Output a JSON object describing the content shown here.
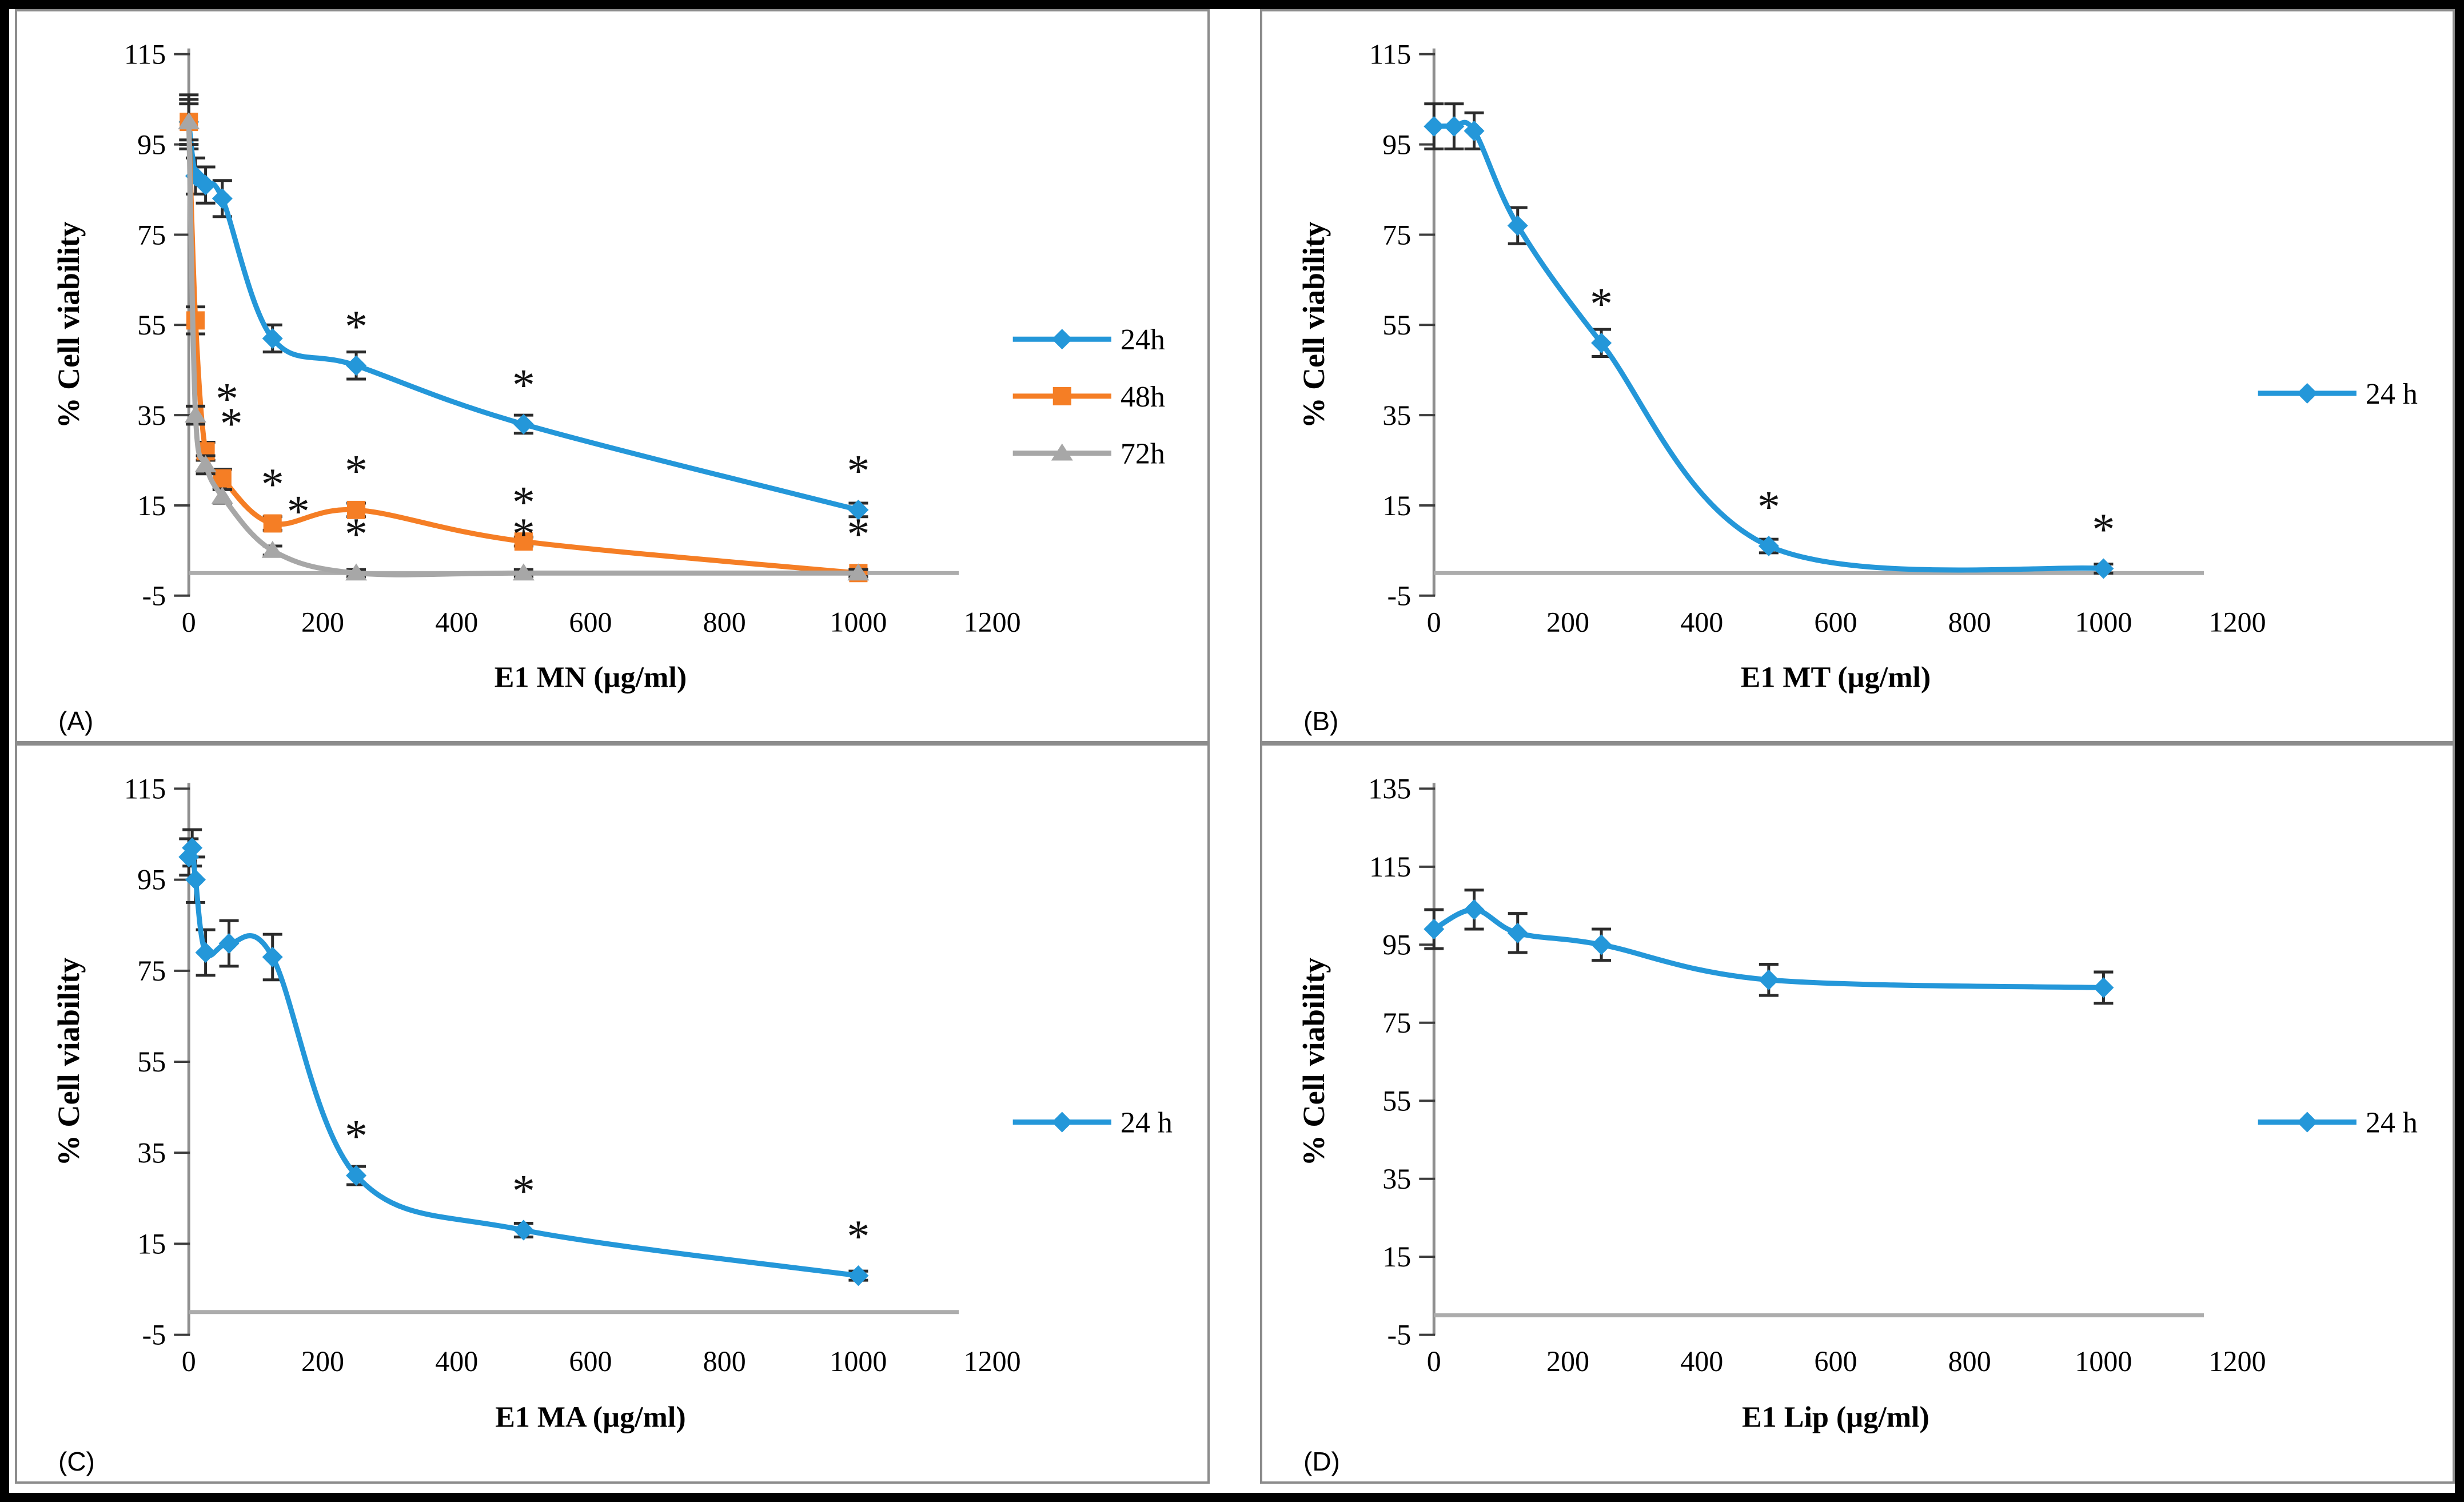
{
  "colors": {
    "background": "#FFFFFF",
    "outer_border": "#000000",
    "panel_border": "#8C8C8C",
    "axis_line": "#8F8F8F",
    "zero_line": "#ACACAC",
    "tick_mark": "#3D3D3D",
    "error_bar": "#2B2B2B",
    "text": "#000000",
    "series_blue": "#2497D9",
    "series_orange": "#F57E25",
    "series_gray": "#A7A7A7"
  },
  "chart_data": [
    {
      "panel_label": "(A)",
      "type": "line",
      "xlabel": "E1 MN (µg/ml)",
      "ylabel": "% Cell viability",
      "xlim": [
        0,
        1280
      ],
      "ylim": [
        -5,
        115
      ],
      "xticks": [
        0,
        200,
        400,
        600,
        800,
        1000,
        1200
      ],
      "yticks": [
        115,
        95,
        75,
        55,
        35,
        15,
        -5
      ],
      "zero_line_end": 1150,
      "grid": "off",
      "legend_position": "right",
      "legend_y": [
        575,
        675,
        775
      ],
      "series": [
        {
          "name": "24h",
          "color": "#2497D9",
          "marker": "diamond",
          "x": [
            0,
            10,
            25,
            50,
            125,
            250,
            500,
            1000
          ],
          "y": [
            100,
            88,
            86,
            83,
            52,
            46,
            33,
            14
          ],
          "err": [
            6,
            4,
            4,
            4,
            3,
            3,
            2,
            1.5
          ],
          "sig": [
            {
              "x": 250
            },
            {
              "x": 500
            },
            {
              "x": 1000
            }
          ]
        },
        {
          "name": "48h",
          "color": "#F57E25",
          "marker": "square",
          "x": [
            0,
            10,
            25,
            50,
            125,
            250,
            500,
            1000
          ],
          "y": [
            100,
            56,
            27,
            21,
            11,
            14,
            7,
            0
          ],
          "err": [
            5,
            3,
            2,
            2,
            1.5,
            1.5,
            1,
            0.8
          ],
          "sig": [
            {
              "x": 25,
              "ox": 45,
              "oy": 20
            },
            {
              "x": 125
            },
            {
              "x": 250
            },
            {
              "x": 500
            },
            {
              "x": 1000
            }
          ]
        },
        {
          "name": "72h",
          "color": "#A7A7A7",
          "marker": "triangle",
          "x": [
            0,
            10,
            25,
            50,
            125,
            250,
            500,
            1000
          ],
          "y": [
            100,
            35,
            24,
            17,
            5,
            0,
            0,
            0
          ],
          "err": [
            4,
            2,
            2,
            1.5,
            1,
            0.8,
            0.8,
            0.8
          ],
          "sig": [
            {
              "x": 10,
              "ox": 55,
              "oy": 40
            },
            {
              "x": 125,
              "ox": 45,
              "oy": 0
            },
            {
              "x": 250
            },
            {
              "x": 500
            }
          ]
        }
      ]
    },
    {
      "panel_label": "(B)",
      "type": "line",
      "xlabel": "E1 MT (µg/ml)",
      "ylabel": "% Cell viability",
      "xlim": [
        0,
        1280
      ],
      "ylim": [
        -5,
        115
      ],
      "xticks": [
        0,
        200,
        400,
        600,
        800,
        1000,
        1200
      ],
      "yticks": [
        115,
        95,
        75,
        55,
        35,
        15,
        -5
      ],
      "zero_line_end": 1150,
      "grid": "off",
      "legend_position": "right",
      "legend_y": [
        670
      ],
      "series": [
        {
          "name": "24 h",
          "color": "#2497D9",
          "marker": "diamond",
          "x": [
            0,
            30,
            60,
            125,
            250,
            500,
            1000
          ],
          "y": [
            99,
            99,
            98,
            77,
            51,
            6,
            1
          ],
          "err": [
            5,
            5,
            4,
            4,
            3,
            1.5,
            1
          ],
          "sig": [
            {
              "x": 250
            },
            {
              "x": 500
            },
            {
              "x": 1000
            }
          ]
        }
      ]
    },
    {
      "panel_label": "(C)",
      "type": "line",
      "xlabel": "E1 MA (µg/ml)",
      "ylabel": "% Cell viability",
      "xlim": [
        0,
        1280
      ],
      "ylim": [
        -5,
        115
      ],
      "xticks": [
        0,
        200,
        400,
        600,
        800,
        1000,
        1200
      ],
      "yticks": [
        115,
        95,
        75,
        55,
        35,
        15,
        -5
      ],
      "zero_line_end": 1150,
      "grid": "off",
      "legend_position": "right",
      "legend_y": [
        655
      ],
      "series": [
        {
          "name": "24 h",
          "color": "#2497D9",
          "marker": "diamond",
          "x": [
            0,
            5,
            10,
            25,
            60,
            125,
            250,
            500,
            1000
          ],
          "y": [
            100,
            102,
            95,
            79,
            81,
            78,
            30,
            18,
            8
          ],
          "err": [
            4,
            4,
            5,
            5,
            5,
            5,
            2,
            1.5,
            1
          ],
          "sig": [
            {
              "x": 250
            },
            {
              "x": 500
            },
            {
              "x": 1000
            }
          ]
        }
      ]
    },
    {
      "panel_label": "(D)",
      "type": "line",
      "xlabel": "E1 Lip (µg/ml)",
      "ylabel": "% Cell viability",
      "xlim": [
        0,
        1280
      ],
      "ylim": [
        -5,
        135
      ],
      "xticks": [
        0,
        200,
        400,
        600,
        800,
        1000,
        1200
      ],
      "yticks": [
        135,
        115,
        95,
        75,
        55,
        35,
        15,
        -5
      ],
      "zero_line_end": 1150,
      "grid": "off",
      "legend_position": "right",
      "legend_y": [
        655
      ],
      "series": [
        {
          "name": "24 h",
          "color": "#2497D9",
          "marker": "diamond",
          "x": [
            0,
            60,
            125,
            250,
            500,
            1000
          ],
          "y": [
            99,
            104,
            98,
            95,
            86,
            84
          ],
          "err": [
            5,
            5,
            5,
            4,
            4,
            4
          ],
          "sig": []
        }
      ]
    }
  ]
}
